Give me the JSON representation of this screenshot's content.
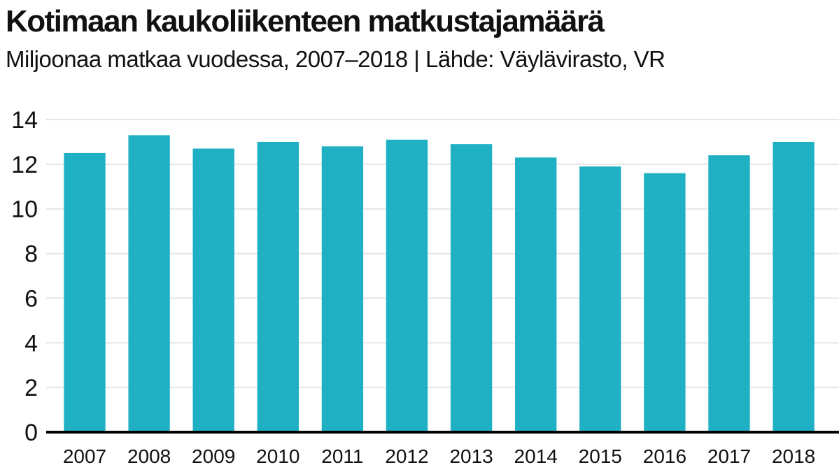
{
  "chart_data": {
    "type": "bar",
    "title": "Kotimaan kaukoliikenteen matkustajamäärä",
    "subtitle": "Miljoonaa matkaa vuodessa, 2007–2018 | Lähde: Väylävirasto, VR",
    "categories": [
      "2007",
      "2008",
      "2009",
      "2010",
      "2011",
      "2012",
      "2013",
      "2014",
      "2015",
      "2016",
      "2017",
      "2018"
    ],
    "values": [
      12.5,
      13.3,
      12.7,
      13.0,
      12.8,
      13.1,
      12.9,
      12.3,
      11.9,
      11.6,
      12.4,
      13.0
    ],
    "ylim": [
      0,
      14
    ],
    "yticks": [
      "0",
      "2",
      "4",
      "6",
      "8",
      "10",
      "12",
      "14"
    ],
    "xlabel": "",
    "ylabel": "",
    "grid": true,
    "colors": {
      "bar": "#1fb1c3",
      "grid": "#e6e6e6",
      "axis": "#000000"
    }
  }
}
